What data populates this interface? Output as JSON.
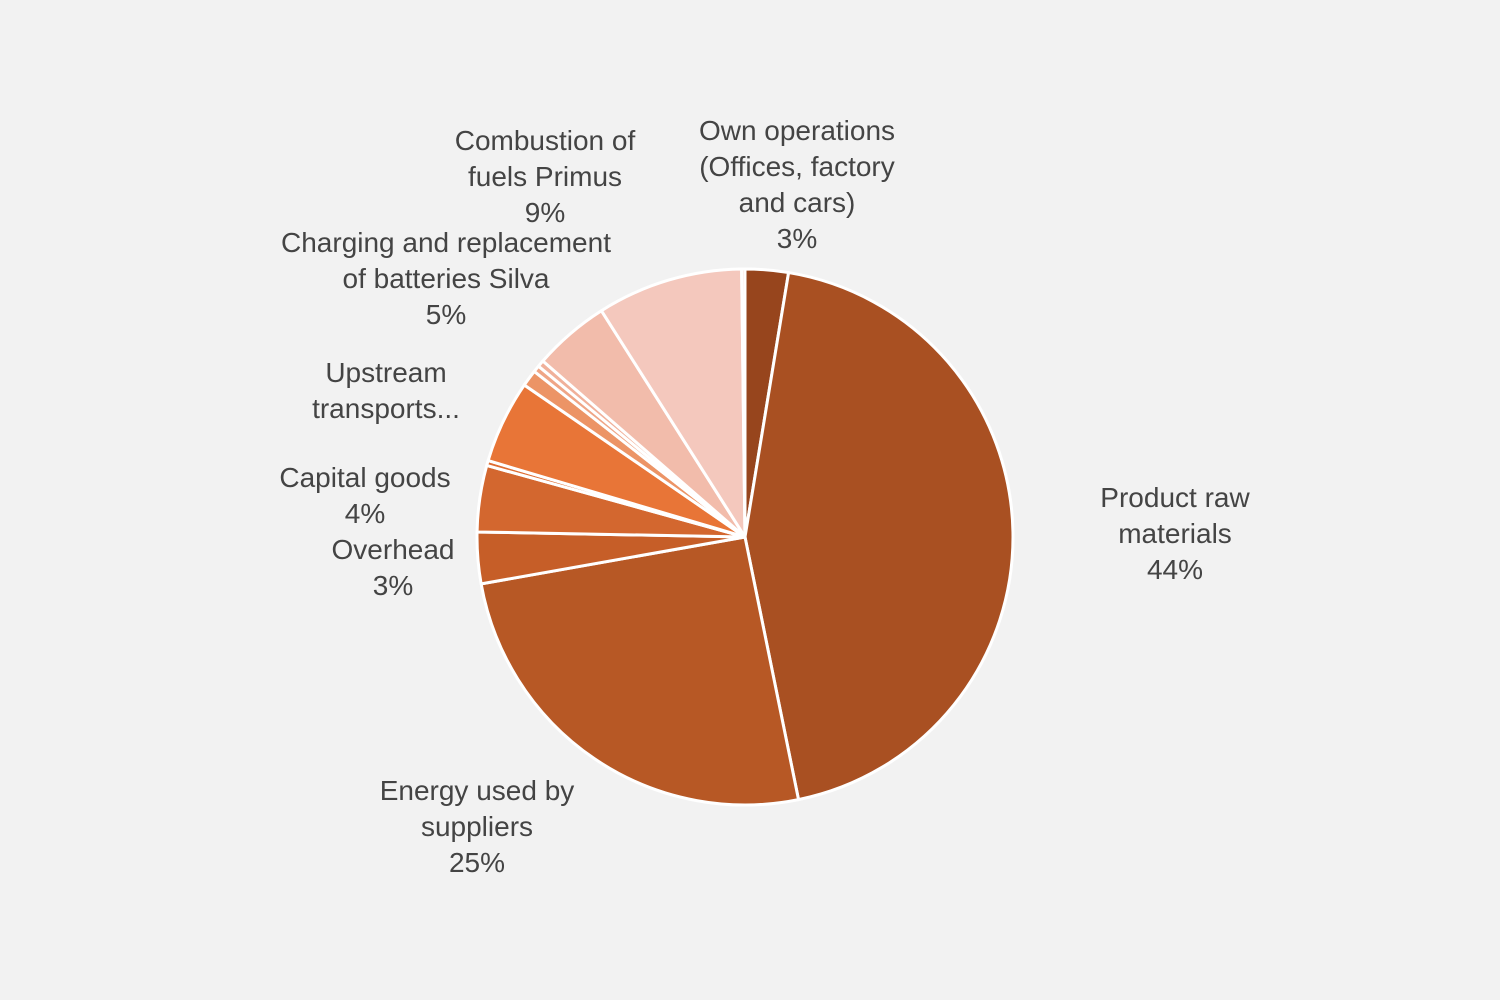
{
  "chart_data": {
    "type": "pie",
    "start_angle_deg": 0,
    "direction": "clockwise",
    "slices": [
      {
        "label_lines": [
          "Own operations",
          "(Offices, factory",
          "and cars)",
          "3%"
        ],
        "value": 2.6,
        "color": "#97451d",
        "show_label": true
      },
      {
        "label_lines": [
          "Product raw",
          "materials",
          "44%"
        ],
        "value": 44.2,
        "color": "#a95022",
        "show_label": true
      },
      {
        "label_lines": [
          "Energy used by",
          "suppliers",
          "25%"
        ],
        "value": 25.4,
        "color": "#b75825",
        "show_label": true
      },
      {
        "label_lines": [
          "Overhead",
          "3%"
        ],
        "value": 3.1,
        "color": "#c65e28",
        "show_label": true
      },
      {
        "label_lines": [
          "Capital goods",
          "4%"
        ],
        "value": 4.0,
        "color": "#d3672f",
        "show_label": true
      },
      {
        "label_lines": [],
        "value": 0.3,
        "color": "#de6d33",
        "show_label": false
      },
      {
        "label_lines": [
          "Upstream",
          "transports..."
        ],
        "value": 5.0,
        "color": "#e87537",
        "show_label": true
      },
      {
        "label_lines": [],
        "value": 1.0,
        "color": "#ec9466",
        "show_label": false
      },
      {
        "label_lines": [],
        "value": 0.4,
        "color": "#efa586",
        "show_label": false
      },
      {
        "label_lines": [],
        "value": 0.4,
        "color": "#f0b09a",
        "show_label": false
      },
      {
        "label_lines": [
          "Charging and replacement",
          "of batteries Silva",
          "5%"
        ],
        "value": 4.6,
        "color": "#f2bcab",
        "show_label": true
      },
      {
        "label_lines": [
          "Combustion of",
          "fuels Primus",
          "9%"
        ],
        "value": 8.8,
        "color": "#f4c8bd",
        "show_label": true
      },
      {
        "label_lines": [],
        "value": 0.2,
        "color": "#f6d6cd",
        "show_label": false
      }
    ]
  }
}
